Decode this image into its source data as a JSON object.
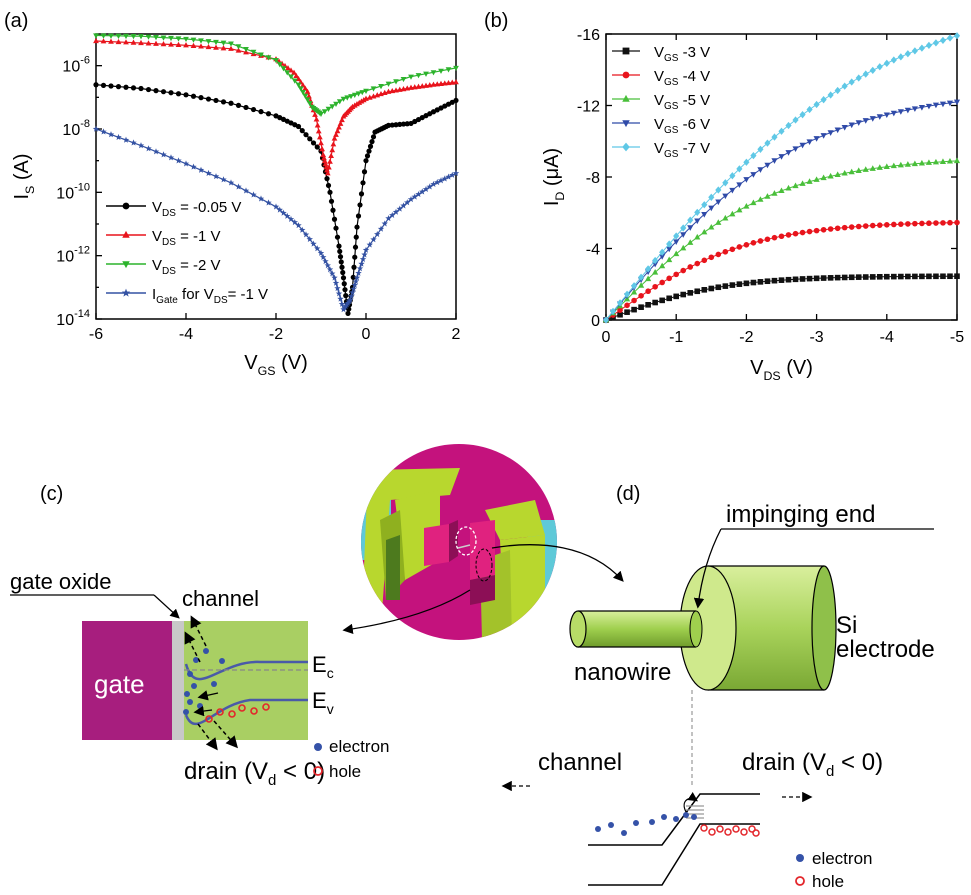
{
  "panels": {
    "a": {
      "label": "(a)"
    },
    "b": {
      "label": "(b)"
    },
    "c": {
      "label": "(c)"
    },
    "d": {
      "label": "(d)"
    }
  },
  "chart_data": [
    {
      "id": "a",
      "type": "line",
      "y_scale": "log",
      "xlabel": "V_GS (V)",
      "ylabel": "I_S (A)",
      "xlim": [
        -6,
        2
      ],
      "ylim": [
        1e-14,
        1e-05
      ],
      "xticks": [
        -6,
        -4,
        -2,
        0,
        2
      ],
      "xtick_labels": [
        "-6",
        "-4",
        "-2",
        "0",
        "2"
      ],
      "yticks": [
        1e-14,
        1e-12,
        1e-10,
        1e-08,
        1e-06
      ],
      "ytick_labels": [
        "10-14",
        "10-12",
        "10-10",
        "10-8",
        "10-6"
      ],
      "legend_position": "bottom-left",
      "series": [
        {
          "name": "V_DS = -0.05 V",
          "color": "#000000",
          "marker": "circle",
          "x": [
            -6,
            -5,
            -4,
            -3,
            -2,
            -1.5,
            -1,
            -0.8,
            -0.6,
            -0.5,
            -0.4,
            -0.3,
            -0.2,
            0,
            0.2,
            0.5,
            1,
            1.5,
            2
          ],
          "y": [
            2.5e-07,
            1.9e-07,
            1.2e-07,
            6.5e-08,
            2.6e-08,
            1.2e-08,
            2e-09,
            1e-10,
            2e-12,
            2e-13,
            1.5e-14,
            1e-13,
            8e-12,
            1e-09,
            8e-09,
            1.3e-08,
            1.5e-08,
            3.5e-08,
            8e-08
          ]
        },
        {
          "name": "V_DS = -1 V",
          "color": "#e8141c",
          "marker": "triangle-up",
          "x": [
            -6,
            -5,
            -4,
            -3,
            -2,
            -1.6,
            -1.3,
            -1.1,
            -0.95,
            -0.85,
            -0.7,
            -0.5,
            -0.3,
            0,
            0.5,
            1,
            1.5,
            2
          ],
          "y": [
            6e-06,
            5.2e-06,
            4.4e-06,
            3.4e-06,
            1.6e-06,
            6e-07,
            1.5e-07,
            2e-08,
            1.5e-09,
            4e-10,
            5e-09,
            2.5e-08,
            5e-08,
            9e-08,
            1.5e-07,
            2e-07,
            2.5e-07,
            3e-07
          ]
        },
        {
          "name": "V_DS = -2 V",
          "color": "#2cb32c",
          "marker": "triangle-down",
          "x": [
            -6,
            -5,
            -4,
            -3,
            -2,
            -1.5,
            -1.2,
            -1.0,
            -0.5,
            0,
            1,
            2
          ],
          "y": [
            9e-06,
            8.5e-06,
            7e-06,
            5e-06,
            1.5e-06,
            2.5e-07,
            5e-08,
            3e-08,
            9e-08,
            1.6e-07,
            4.5e-07,
            8.5e-07
          ]
        },
        {
          "name": "I_Gate for V_DS= -1 V",
          "color": "#3452a3",
          "marker": "star",
          "x": [
            -6,
            -5,
            -4,
            -3,
            -2,
            -1.5,
            -1,
            -0.7,
            -0.5,
            -0.35,
            -0.2,
            0,
            0.5,
            1,
            1.5,
            2
          ],
          "y": [
            1e-08,
            3e-09,
            8e-10,
            2e-10,
            3.5e-11,
            9e-12,
            1.2e-12,
            2e-13,
            2e-14,
            4e-14,
            2e-13,
            1.5e-12,
            1.5e-11,
            6e-11,
            1.8e-10,
            4e-10
          ]
        }
      ]
    },
    {
      "id": "b",
      "type": "line",
      "xlabel": "V_DS (V)",
      "ylabel": "I_D (μA)",
      "xlim": [
        0,
        -5
      ],
      "ylim": [
        0,
        -16
      ],
      "xticks": [
        0,
        -1,
        -2,
        -3,
        -4,
        -5
      ],
      "xtick_labels": [
        "0",
        "-1",
        "-2",
        "-3",
        "-4",
        "-5"
      ],
      "yticks": [
        0,
        -4,
        -8,
        -12,
        -16
      ],
      "ytick_labels": [
        "0",
        "-4",
        "-8",
        "-12",
        "-16"
      ],
      "legend_position": "top-left",
      "series": [
        {
          "name": "V_GS -3 V",
          "color": "#111111",
          "marker": "square",
          "isat": -2.45,
          "vsat": 2.0
        },
        {
          "name": "V_GS -4 V",
          "color": "#e8141c",
          "marker": "circle",
          "isat": -5.45,
          "vsat": 2.4
        },
        {
          "name": "V_GS -5 V",
          "color": "#49bf3a",
          "marker": "triangle-up",
          "isat": -8.9,
          "vsat": 2.8
        },
        {
          "name": "V_GS -6 V",
          "color": "#2f4aa8",
          "marker": "triangle-down",
          "isat": -12.2,
          "vsat": 3.4
        },
        {
          "name": "V_GS -7 V",
          "color": "#5fc8e6",
          "marker": "diamond",
          "isat": -15.9,
          "vsat": 4.6
        }
      ]
    }
  ],
  "panel_c": {
    "gate_oxide": "gate oxide",
    "channel": "channel",
    "gate": "gate",
    "ec": "E",
    "ec_sub": "c",
    "ev": "E",
    "ev_sub": "v",
    "drain": "drain (V",
    "drain_sub": "d",
    "drain_end": " < 0)",
    "legend_electron": "electron",
    "legend_hole": "hole",
    "colors": {
      "gate": "#a71e7e",
      "oxide": "#c8c8c8",
      "channel": "#a9cf63",
      "band": "#4a5aa8",
      "electron": "#3552a8",
      "hole": "#e3262b"
    }
  },
  "panel_d": {
    "impinging_end": "impinging end",
    "si": "Si",
    "electrode": "electrode",
    "nanowire": "nanowire",
    "channel": "channel",
    "drain": "drain (V",
    "drain_sub": "d",
    "drain_end": " < 0)",
    "legend_electron": "electron",
    "legend_hole": "hole"
  }
}
